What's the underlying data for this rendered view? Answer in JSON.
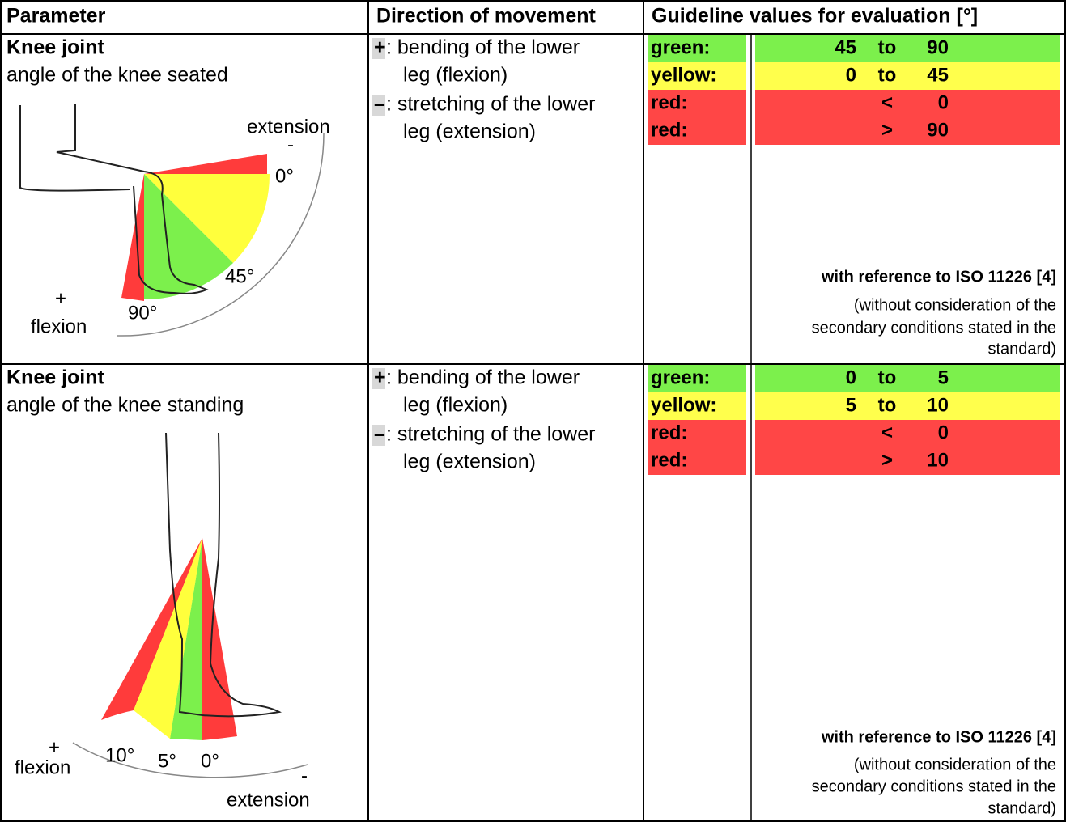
{
  "header": {
    "parameter": "Parameter",
    "direction": "Direction of movement",
    "guideline": "Guideline values for evaluation [°]"
  },
  "rows": [
    {
      "title": "Knee joint",
      "subtitle": "angle of the knee seated",
      "figure": {
        "extension": "extension",
        "minus": "-",
        "plus": "+",
        "flexion": "flexion",
        "angles": [
          "0°",
          "45°",
          "90°"
        ]
      },
      "directions": [
        {
          "sign": "+",
          "line1": ": bending of the lower",
          "line2": "leg (flexion)"
        },
        {
          "sign": "–",
          "line1": ": stretching of the lower",
          "line2": "leg (extension)"
        }
      ],
      "ranges": [
        {
          "label": "green:",
          "from": 45,
          "op": "to",
          "to": 90
        },
        {
          "label": "yellow:",
          "from": 0,
          "op": "to",
          "to": 45
        },
        {
          "label": "red:",
          "op": "<",
          "to": 0
        },
        {
          "label": "red:",
          "op": ">",
          "to": 90
        }
      ],
      "reference": "with reference to ISO 11226 [4]",
      "note": [
        "(without consideration of the",
        "secondary conditions stated in the",
        "standard)"
      ]
    },
    {
      "title": "Knee joint",
      "subtitle": "angle of the knee standing",
      "figure": {
        "extension": "extension",
        "minus": "-",
        "plus": "+",
        "flexion": "flexion",
        "angles": [
          "10°",
          "5°",
          "0°"
        ]
      },
      "directions": [
        {
          "sign": "+",
          "line1": ": bending of the lower",
          "line2": "leg  (flexion)"
        },
        {
          "sign": "–",
          "line1": ": stretching of the lower",
          "line2": "leg (extension)"
        }
      ],
      "ranges": [
        {
          "label": "green:",
          "from": 0,
          "op": "to",
          "to": 5
        },
        {
          "label": "yellow:",
          "from": 5,
          "op": "to",
          "to": 10
        },
        {
          "label": "red:",
          "op": "<",
          "to": 0
        },
        {
          "label": "red:",
          "op": ">",
          "to": 10
        }
      ],
      "reference": "with reference to ISO 11226 [4]",
      "note": [
        "(without consideration of the",
        "secondary conditions stated in the",
        "standard)"
      ]
    }
  ]
}
